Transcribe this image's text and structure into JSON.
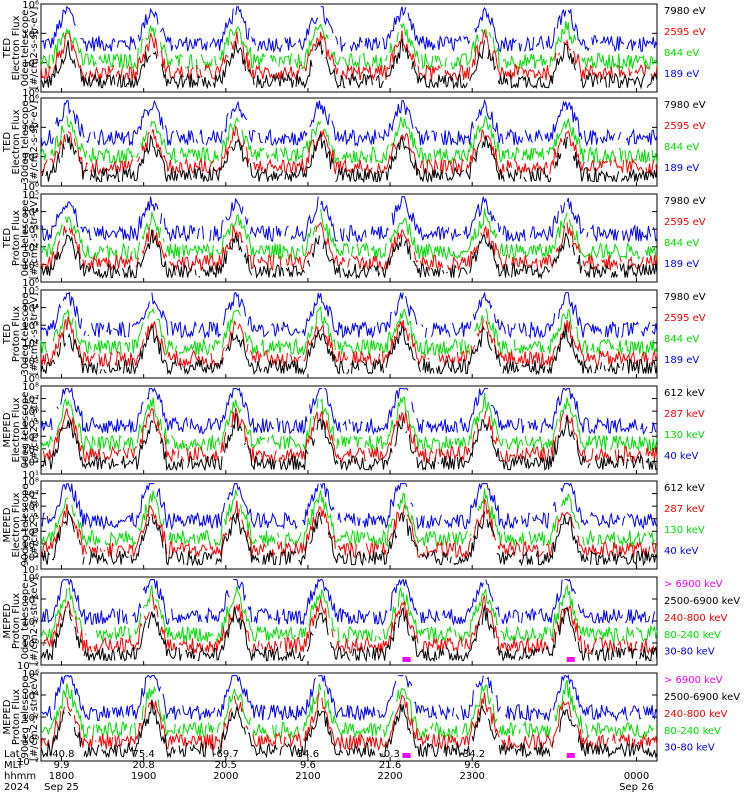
{
  "colors": {
    "blue": "#0000ff",
    "red": "#ff0000",
    "green": "#00dd00",
    "black": "#000000",
    "magenta": "#ff00ff"
  },
  "chart_data": {
    "type": "line",
    "x_range_hours": [
      0,
      30
    ],
    "panels": [
      {
        "ylabel": [
          "TED",
          "Electron Flux",
          "0deg telescope",
          "[#/cm2-s-str-eV]"
        ],
        "yexp_range": [
          0,
          6
        ],
        "yticks": [
          "10⁰",
          "10²",
          "10⁴",
          "10⁶"
        ],
        "legend": [
          {
            "label": "7980 eV",
            "color": "black"
          },
          {
            "label": "2595 eV",
            "color": "red"
          },
          {
            "label": "844 eV",
            "color": "green"
          },
          {
            "label": "189 eV",
            "color": "blue"
          }
        ]
      },
      {
        "ylabel": [
          "TED",
          "Electron Flux",
          "30deg telescope",
          "[#/cm2-s-str-eV]"
        ],
        "yexp_range": [
          0,
          6
        ],
        "yticks": [
          "10⁰",
          "10²",
          "10⁴",
          "10⁶"
        ],
        "legend": [
          {
            "label": "7980 eV",
            "color": "black"
          },
          {
            "label": "2595 eV",
            "color": "red"
          },
          {
            "label": "844 eV",
            "color": "green"
          },
          {
            "label": "189 eV",
            "color": "blue"
          }
        ]
      },
      {
        "ylabel": [
          "TED",
          "Proton Flux",
          "0deg telescope",
          "[#/cm2-s-str-eV]"
        ],
        "yexp_range": [
          0,
          5
        ],
        "yticks": [
          "10⁰",
          "10¹",
          "10²",
          "10³",
          "10⁴",
          "10⁵"
        ],
        "legend": [
          {
            "label": "7980 eV",
            "color": "black"
          },
          {
            "label": "2595 eV",
            "color": "red"
          },
          {
            "label": "844 eV",
            "color": "green"
          },
          {
            "label": "189 eV",
            "color": "blue"
          }
        ]
      },
      {
        "ylabel": [
          "TED",
          "Proton Flux",
          "30deg telescope",
          "[#/cm2-s-str-eV]"
        ],
        "yexp_range": [
          0,
          5
        ],
        "yticks": [
          "10⁰",
          "10¹",
          "10²",
          "10³",
          "10⁴",
          "10⁵"
        ],
        "legend": [
          {
            "label": "7980 eV",
            "color": "black"
          },
          {
            "label": "2595 eV",
            "color": "red"
          },
          {
            "label": "844 eV",
            "color": "green"
          },
          {
            "label": "189 eV",
            "color": "blue"
          }
        ]
      },
      {
        "ylabel": [
          "MEPED",
          "Electron Flux",
          "0deg telescope",
          "[#/cm2-s-str]"
        ],
        "yexp_range": [
          1,
          8
        ],
        "yticks": [
          "10¹",
          "10²",
          "10³",
          "10⁴",
          "10⁵",
          "10⁶",
          "10⁷",
          "10⁸"
        ],
        "legend": [
          {
            "label": "612 keV",
            "color": "black"
          },
          {
            "label": "287 keV",
            "color": "red"
          },
          {
            "label": "130 keV",
            "color": "green"
          },
          {
            "label": "40 keV",
            "color": "blue"
          }
        ]
      },
      {
        "ylabel": [
          "MEPED",
          "Electron Flux",
          "90deg telescope",
          "[#/cm2-s-str]"
        ],
        "yexp_range": [
          1,
          8
        ],
        "yticks": [
          "10¹",
          "10²",
          "10³",
          "10⁴",
          "10⁵",
          "10⁶",
          "10⁷",
          "10⁸"
        ],
        "legend": [
          {
            "label": "612 keV",
            "color": "black"
          },
          {
            "label": "287 keV",
            "color": "red"
          },
          {
            "label": "130 keV",
            "color": "green"
          },
          {
            "label": "40 keV",
            "color": "blue"
          }
        ]
      },
      {
        "ylabel": [
          "MEPED",
          "Proton Flux",
          "0deg telescope",
          "[#/cm2-s-str-keV]"
        ],
        "yexp_range": [
          -2,
          6
        ],
        "yticks": [
          "10⁻²",
          "10⁰",
          "10²",
          "10⁴",
          "10⁶"
        ],
        "legend": [
          {
            "label": "> 6900 keV",
            "color": "magenta"
          },
          {
            "label": "2500-6900 keV",
            "color": "black"
          },
          {
            "label": "240-800 keV",
            "color": "red"
          },
          {
            "label": "80-240 keV",
            "color": "green"
          },
          {
            "label": "30-80 keV",
            "color": "blue"
          }
        ]
      },
      {
        "ylabel": [
          "MEPED",
          "Proton Flux",
          "90deg telescope",
          "[#/cm2-s-str-keV]"
        ],
        "yexp_range": [
          -2,
          6
        ],
        "yticks": [
          "10⁻²",
          "10⁰",
          "10²",
          "10⁴",
          "10⁶"
        ],
        "legend": [
          {
            "label": "> 6900 keV",
            "color": "magenta"
          },
          {
            "label": "2500-6900 keV",
            "color": "black"
          },
          {
            "label": "240-800 keV",
            "color": "red"
          },
          {
            "label": "80-240 keV",
            "color": "green"
          },
          {
            "label": "30-80 keV",
            "color": "blue"
          }
        ]
      }
    ],
    "xaxis": {
      "row_labels": [
        "Lat",
        "MLT",
        "hhmm",
        "2024"
      ],
      "ticks": [
        {
          "hour": 1,
          "lat": "-40.8",
          "mlt": "9.9",
          "hhmm": "1800",
          "date": "Sep 25"
        },
        {
          "hour": 5,
          "lat": "75.4",
          "mlt": "20.8",
          "hhmm": "1900",
          "date": ""
        },
        {
          "hour": 9,
          "lat": "-69.7",
          "mlt": "20.5",
          "hhmm": "2000",
          "date": ""
        },
        {
          "hour": 13,
          "lat": "34.6",
          "mlt": "9.6",
          "hhmm": "2100",
          "date": ""
        },
        {
          "hour": 17,
          "lat": "-0.3",
          "mlt": "21.6",
          "hhmm": "2200",
          "date": ""
        },
        {
          "hour": 21,
          "lat": "-34.2",
          "mlt": "9.6",
          "hhmm": "2300",
          "date": ""
        },
        {
          "hour": 29,
          "lat": "",
          "mlt": "",
          "hhmm": "0000",
          "date": "Sep 26"
        }
      ]
    },
    "grid": false,
    "legend_placement": "right"
  }
}
